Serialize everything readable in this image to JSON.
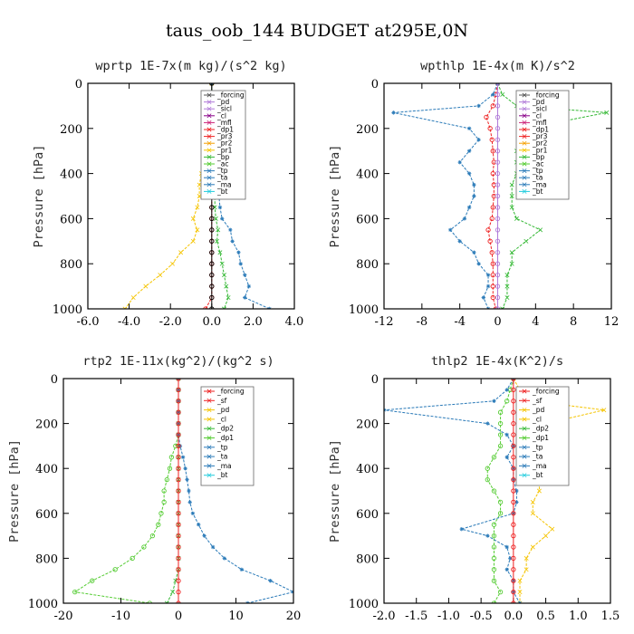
{
  "figure_title": "taus_oob_144  BUDGET at295E,0N",
  "chart_data": [
    {
      "type": "line",
      "title": "wprtp   1E-7x(m kg)/(s^2 kg)",
      "ylabel": "Pressure [hPa]",
      "xlim": [
        -6,
        4
      ],
      "ylim": [
        1000,
        0
      ],
      "xticks": [
        "-6.0",
        "-4.0",
        "-2.0",
        "0.0",
        "2.0",
        "4.0"
      ],
      "xtick_values": [
        -6,
        -4,
        -2,
        0,
        2,
        4
      ],
      "yticks": [
        "0",
        "200",
        "400",
        "600",
        "800",
        "1000"
      ],
      "legend": [
        "_forcing",
        "_pd",
        "_sicl",
        "_cl",
        "_mfl",
        "_dp1",
        "_pr3",
        "_pr2",
        "_pr1",
        "_bp",
        "_ac",
        "_tp",
        "_ta",
        "_ma",
        "_bt"
      ],
      "series": [
        {
          "name": "_forcing",
          "color": "#000000",
          "marker": "circle",
          "x": [
            0,
            0,
            0,
            0,
            0,
            0,
            0,
            0,
            0,
            0,
            0,
            0,
            0,
            0,
            0,
            0,
            0,
            0,
            0,
            0,
            0
          ],
          "y": [
            0,
            50,
            100,
            150,
            200,
            250,
            300,
            350,
            400,
            450,
            500,
            550,
            600,
            650,
            700,
            750,
            800,
            850,
            900,
            950,
            1000
          ]
        },
        {
          "name": "_tp",
          "color": "#2a7ab8",
          "marker": "star",
          "x": [
            0,
            0,
            0,
            0,
            0,
            0,
            -0.2,
            -0.2,
            0.1,
            0.25,
            0.35,
            0.4,
            0.5,
            0.9,
            1.0,
            1.3,
            1.4,
            1.6,
            1.8,
            1.6,
            2.8
          ],
          "y": [
            0,
            50,
            100,
            150,
            200,
            250,
            300,
            350,
            400,
            450,
            500,
            550,
            600,
            650,
            700,
            750,
            800,
            850,
            900,
            950,
            1000
          ]
        },
        {
          "name": "_pr1",
          "color": "#f5c400",
          "marker": "x",
          "x": [
            0,
            0,
            0,
            0,
            0,
            0,
            -0.3,
            -0.4,
            -0.5,
            -0.6,
            -0.6,
            -0.7,
            -0.9,
            -0.7,
            -0.9,
            -1.5,
            -1.9,
            -2.5,
            -3.2,
            -3.8,
            -4.2
          ],
          "y": [
            0,
            50,
            100,
            150,
            200,
            250,
            300,
            350,
            400,
            450,
            500,
            550,
            600,
            650,
            700,
            750,
            800,
            850,
            900,
            950,
            1000
          ]
        },
        {
          "name": "_ac",
          "color": "#33b833",
          "marker": "x",
          "x": [
            0,
            0,
            0,
            0,
            0,
            0,
            0.1,
            0.1,
            0.1,
            0.1,
            0.15,
            0.15,
            0.2,
            0.3,
            0.25,
            0.4,
            0.5,
            0.6,
            0.7,
            0.8,
            0.6
          ],
          "y": [
            0,
            50,
            100,
            150,
            200,
            250,
            300,
            350,
            400,
            450,
            500,
            550,
            600,
            650,
            700,
            750,
            800,
            850,
            900,
            950,
            1000
          ]
        },
        {
          "name": "_dp1",
          "color": "#ee2222",
          "marker": "circle",
          "x": [
            0,
            0,
            0,
            0,
            0,
            0,
            0,
            0,
            0,
            0,
            0,
            0,
            0,
            0,
            0,
            0,
            0,
            0,
            0,
            0,
            -0.3
          ],
          "y": [
            0,
            50,
            100,
            150,
            200,
            250,
            300,
            350,
            400,
            450,
            500,
            550,
            600,
            650,
            700,
            750,
            800,
            850,
            900,
            950,
            1000
          ]
        }
      ]
    },
    {
      "type": "line",
      "title": "wpthlp   1E-4x(m K)/s^2",
      "ylabel": "Pressure [hPa]",
      "xlim": [
        -12,
        12
      ],
      "ylim": [
        1000,
        0
      ],
      "xticks": [
        "-12",
        "-8",
        "-4",
        "0",
        "4",
        "8",
        "12"
      ],
      "xtick_values": [
        -12,
        -8,
        -4,
        0,
        4,
        8,
        12
      ],
      "yticks": [
        "0",
        "200",
        "400",
        "600",
        "800",
        "1000"
      ],
      "legend": [
        "_forcing",
        "_pd",
        "_sicl",
        "_cl",
        "_mfl",
        "_dp1",
        "_pr3",
        "_pr2",
        "_pr1",
        "_bp",
        "_ac",
        "_tp",
        "_ta",
        "_ma",
        "_bt"
      ],
      "series": [
        {
          "name": "_forcing",
          "color": "#b07ad8",
          "marker": "circle",
          "x": [
            0,
            0,
            0,
            0,
            0,
            0,
            0,
            0,
            0,
            0,
            0,
            0,
            0,
            0,
            0,
            0,
            0,
            0,
            0,
            0,
            0
          ],
          "y": [
            0,
            50,
            100,
            150,
            200,
            250,
            300,
            350,
            400,
            450,
            500,
            550,
            600,
            650,
            700,
            750,
            800,
            850,
            900,
            950,
            1000
          ]
        },
        {
          "name": "_tp",
          "color": "#2a7ab8",
          "marker": "star",
          "x": [
            0,
            -0.5,
            -2,
            -11,
            -3,
            -2,
            -3,
            -4,
            -3,
            -2.5,
            -2.5,
            -3,
            -3.5,
            -5,
            -4,
            -2.5,
            -2,
            -1,
            -1,
            -1.5,
            -1
          ],
          "y": [
            0,
            50,
            100,
            130,
            200,
            250,
            300,
            350,
            400,
            450,
            500,
            550,
            600,
            650,
            700,
            750,
            800,
            850,
            900,
            950,
            1000
          ]
        },
        {
          "name": "_ac",
          "color": "#33b833",
          "marker": "x",
          "x": [
            0,
            0.5,
            2,
            11.5,
            3,
            2.5,
            2,
            2,
            2,
            1.5,
            1.5,
            1.5,
            2,
            4.5,
            3,
            1.5,
            1.5,
            1,
            1,
            1,
            0.5
          ],
          "y": [
            0,
            50,
            100,
            130,
            200,
            250,
            300,
            350,
            400,
            450,
            500,
            550,
            600,
            650,
            700,
            750,
            800,
            850,
            900,
            950,
            1000
          ]
        },
        {
          "name": "_dp1",
          "color": "#ee2222",
          "marker": "circle",
          "x": [
            0,
            -0.2,
            -0.5,
            -1.2,
            -0.8,
            -0.6,
            -0.5,
            -0.4,
            -0.5,
            -0.4,
            -0.4,
            -0.5,
            -0.6,
            -1.0,
            -0.8,
            -0.6,
            -0.5,
            -0.5,
            -0.5,
            -0.5,
            -0.2
          ],
          "y": [
            0,
            50,
            100,
            150,
            200,
            250,
            300,
            350,
            400,
            450,
            500,
            550,
            600,
            650,
            700,
            750,
            800,
            850,
            900,
            950,
            1000
          ]
        }
      ]
    },
    {
      "type": "line",
      "title": "rtp2   1E-11x(kg^2)/(kg^2 s)",
      "ylabel": "Pressure [hPa]",
      "xlim": [
        -20,
        20
      ],
      "ylim": [
        1000,
        0
      ],
      "xticks": [
        "-20",
        "-10",
        "0",
        "10",
        "20"
      ],
      "xtick_values": [
        -20,
        -10,
        0,
        10,
        20
      ],
      "yticks": [
        "0",
        "200",
        "400",
        "600",
        "800",
        "1000"
      ],
      "legend": [
        "_forcing",
        "_sf",
        "_pd",
        "_cl",
        "_dp2",
        "_dp1",
        "_tp",
        "_ta",
        "_ma",
        "_bt"
      ],
      "series": [
        {
          "name": "_forcing",
          "color": "#ee2222",
          "marker": "circle",
          "x": [
            0,
            0,
            0,
            0,
            0,
            0,
            0,
            0,
            0,
            0,
            0,
            0,
            0,
            0,
            0,
            0,
            0,
            0,
            0,
            0,
            0
          ],
          "y": [
            0,
            50,
            100,
            150,
            200,
            250,
            300,
            350,
            400,
            450,
            500,
            550,
            600,
            650,
            700,
            750,
            800,
            850,
            900,
            950,
            1000
          ]
        },
        {
          "name": "_tp",
          "color": "#2a7ab8",
          "marker": "star",
          "x": [
            0,
            0,
            0,
            0,
            0,
            0,
            0.3,
            0.8,
            1.2,
            1.5,
            1.8,
            2.0,
            2.5,
            3.5,
            4.5,
            6,
            8,
            11,
            16,
            20,
            12
          ],
          "y": [
            0,
            50,
            100,
            150,
            200,
            250,
            300,
            350,
            400,
            450,
            500,
            550,
            600,
            650,
            700,
            750,
            800,
            850,
            900,
            950,
            1000
          ]
        },
        {
          "name": "_dp1",
          "color": "#55cc33",
          "marker": "circle",
          "x": [
            0,
            0,
            0,
            0,
            0,
            0,
            -0.5,
            -1.2,
            -1.5,
            -2.0,
            -2.5,
            -2.5,
            -3.0,
            -3.5,
            -4.5,
            -6,
            -8,
            -11,
            -15,
            -18,
            -5
          ],
          "y": [
            0,
            50,
            100,
            150,
            200,
            250,
            300,
            350,
            400,
            450,
            500,
            550,
            600,
            650,
            700,
            750,
            800,
            850,
            900,
            950,
            1000
          ]
        },
        {
          "name": "_dp2",
          "color": "#33b833",
          "marker": "x",
          "x": [
            0,
            0,
            0,
            0,
            0,
            0,
            0,
            0,
            0,
            0,
            0,
            0,
            0,
            0,
            0,
            0,
            0,
            0,
            -0.5,
            -1,
            -2
          ],
          "y": [
            0,
            50,
            100,
            150,
            200,
            250,
            300,
            350,
            400,
            450,
            500,
            550,
            600,
            650,
            700,
            750,
            800,
            850,
            900,
            950,
            1000
          ]
        }
      ]
    },
    {
      "type": "line",
      "title": "thlp2   1E-4x(K^2)/s",
      "ylabel": "Pressure [hPa]",
      "xlim": [
        -2,
        1.5
      ],
      "ylim": [
        1000,
        0
      ],
      "xticks": [
        "-2.0",
        "-1.5",
        "-1.0",
        "-0.5",
        "0.0",
        "0.5",
        "1.0",
        "1.5"
      ],
      "xtick_values": [
        -2,
        -1.5,
        -1,
        -0.5,
        0,
        0.5,
        1,
        1.5
      ],
      "yticks": [
        "0",
        "200",
        "400",
        "600",
        "800",
        "1000"
      ],
      "legend": [
        "_forcing",
        "_sf",
        "_pd",
        "_cl",
        "_dp2",
        "_dp1",
        "_tp",
        "_ta",
        "_ma",
        "_bt"
      ],
      "series": [
        {
          "name": "_forcing",
          "color": "#ee2222",
          "marker": "circle",
          "x": [
            0,
            0,
            0,
            0,
            0,
            0,
            0,
            0,
            0,
            0,
            0,
            0,
            0,
            0,
            0,
            0,
            0,
            0,
            0,
            0,
            0
          ],
          "y": [
            0,
            50,
            100,
            150,
            200,
            250,
            300,
            350,
            400,
            450,
            500,
            550,
            600,
            650,
            700,
            750,
            800,
            850,
            900,
            950,
            1000
          ]
        },
        {
          "name": "_tp",
          "color": "#2a7ab8",
          "marker": "star",
          "x": [
            0,
            -0.1,
            -0.3,
            -2.0,
            -0.4,
            -0.1,
            0,
            -0.1,
            0,
            0,
            0.05,
            0.05,
            0,
            -0.8,
            -0.4,
            -0.1,
            -0.05,
            -0.1,
            0,
            0,
            0.1
          ],
          "y": [
            0,
            50,
            100,
            140,
            200,
            250,
            300,
            350,
            400,
            450,
            500,
            550,
            600,
            670,
            700,
            750,
            800,
            850,
            900,
            950,
            1000
          ]
        },
        {
          "name": "_cl",
          "color": "#f5c400",
          "marker": "x",
          "x": [
            0,
            0.1,
            0.3,
            1.4,
            0.5,
            0.3,
            0.3,
            0.3,
            0.3,
            0.4,
            0.4,
            0.3,
            0.3,
            0.6,
            0.5,
            0.3,
            0.2,
            0.2,
            0.1,
            0.1,
            0.1
          ],
          "y": [
            0,
            50,
            100,
            140,
            200,
            250,
            300,
            350,
            400,
            450,
            500,
            550,
            600,
            670,
            700,
            750,
            800,
            850,
            900,
            950,
            1000
          ]
        },
        {
          "name": "_dp1",
          "color": "#55cc33",
          "marker": "circle",
          "x": [
            0,
            -0.05,
            -0.1,
            -0.2,
            -0.2,
            -0.2,
            -0.2,
            -0.3,
            -0.4,
            -0.4,
            -0.3,
            -0.2,
            -0.2,
            -0.3,
            -0.3,
            -0.3,
            -0.3,
            -0.3,
            -0.3,
            -0.2,
            -0.3
          ],
          "y": [
            0,
            50,
            100,
            150,
            200,
            250,
            300,
            350,
            400,
            450,
            500,
            550,
            600,
            650,
            700,
            750,
            800,
            850,
            900,
            950,
            1000
          ]
        }
      ]
    }
  ]
}
